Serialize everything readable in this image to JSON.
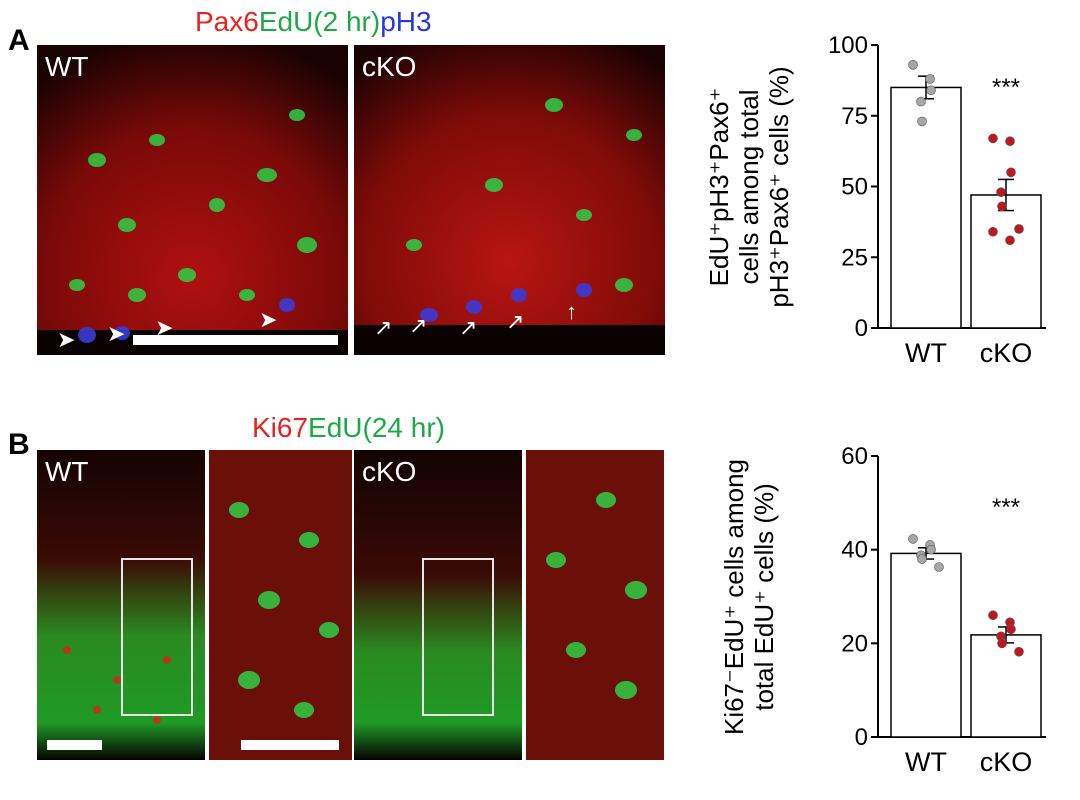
{
  "panel_a": {
    "letter": "A",
    "stain_title": [
      {
        "text": "Pax6",
        "color": "#e8221e"
      },
      {
        "text": "EdU(2 hr)",
        "color": "#1fa84a"
      },
      {
        "text": "pH3",
        "color": "#2636e0"
      }
    ],
    "images": [
      {
        "label": "WT"
      },
      {
        "label": "cKO"
      }
    ]
  },
  "panel_b": {
    "letter": "B",
    "stain_title": [
      {
        "text": "Ki67",
        "color": "#e8221e"
      },
      {
        "text": "EdU(24 hr)",
        "color": "#1fa84a"
      }
    ],
    "images": [
      {
        "label": "WT"
      },
      {
        "label": ""
      },
      {
        "label": "cKO"
      },
      {
        "label": ""
      }
    ]
  },
  "chart_data": [
    {
      "type": "bar",
      "categories": [
        "WT",
        "cKO"
      ],
      "values": [
        85,
        47
      ],
      "errors": [
        4,
        5.5
      ],
      "points": [
        [
          93,
          88,
          84,
          80,
          73
        ],
        [
          67,
          66,
          55,
          48,
          43,
          35,
          34,
          31
        ]
      ],
      "point_colors": [
        "#a6a6a6",
        "#c0171e"
      ],
      "ylabel_lines": [
        "EdU⁺pH3⁺Pax6⁺",
        "cells among total",
        "pH3⁺Pax6⁺ cells (%)"
      ],
      "ylim": [
        0,
        100
      ],
      "yticks": [
        0,
        25,
        50,
        75,
        100
      ],
      "significance": "***"
    },
    {
      "type": "bar",
      "categories": [
        "WT",
        "cKO"
      ],
      "values": [
        39.2,
        21.8
      ],
      "errors": [
        1.2,
        1.7
      ],
      "points": [
        [
          42.3,
          41,
          40,
          38.8,
          38,
          36.3
        ],
        [
          26,
          24.5,
          23,
          21.5,
          20,
          18.2
        ]
      ],
      "point_colors": [
        "#a6a6a6",
        "#c0171e"
      ],
      "ylabel_lines": [
        "Ki67⁻EdU⁺ cells among",
        "total EdU⁺ cells (%)"
      ],
      "ylim": [
        0,
        60
      ],
      "yticks": [
        0,
        20,
        40,
        60
      ],
      "significance": "***"
    }
  ]
}
